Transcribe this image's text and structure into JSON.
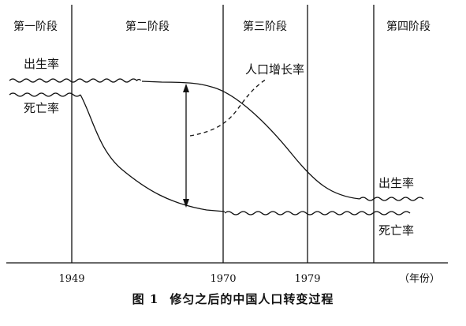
{
  "diagram": {
    "stages": [
      "第一阶段",
      "第二阶段",
      "第三阶段",
      "第四阶段"
    ],
    "curve_labels": {
      "birth_rate_left": "出生率",
      "death_rate_left": "死亡率",
      "natural_growth": "人口增长率",
      "birth_rate_right": "出生率",
      "death_rate_right": "死亡率"
    },
    "x_ticks": [
      "1949",
      "1970",
      "1979"
    ],
    "x_unit": "（年份）"
  },
  "caption": {
    "number": "图 1",
    "title": "修匀之后的中国人口转变过程"
  },
  "colors": {
    "line": "#111111",
    "background": "#ffffff"
  }
}
